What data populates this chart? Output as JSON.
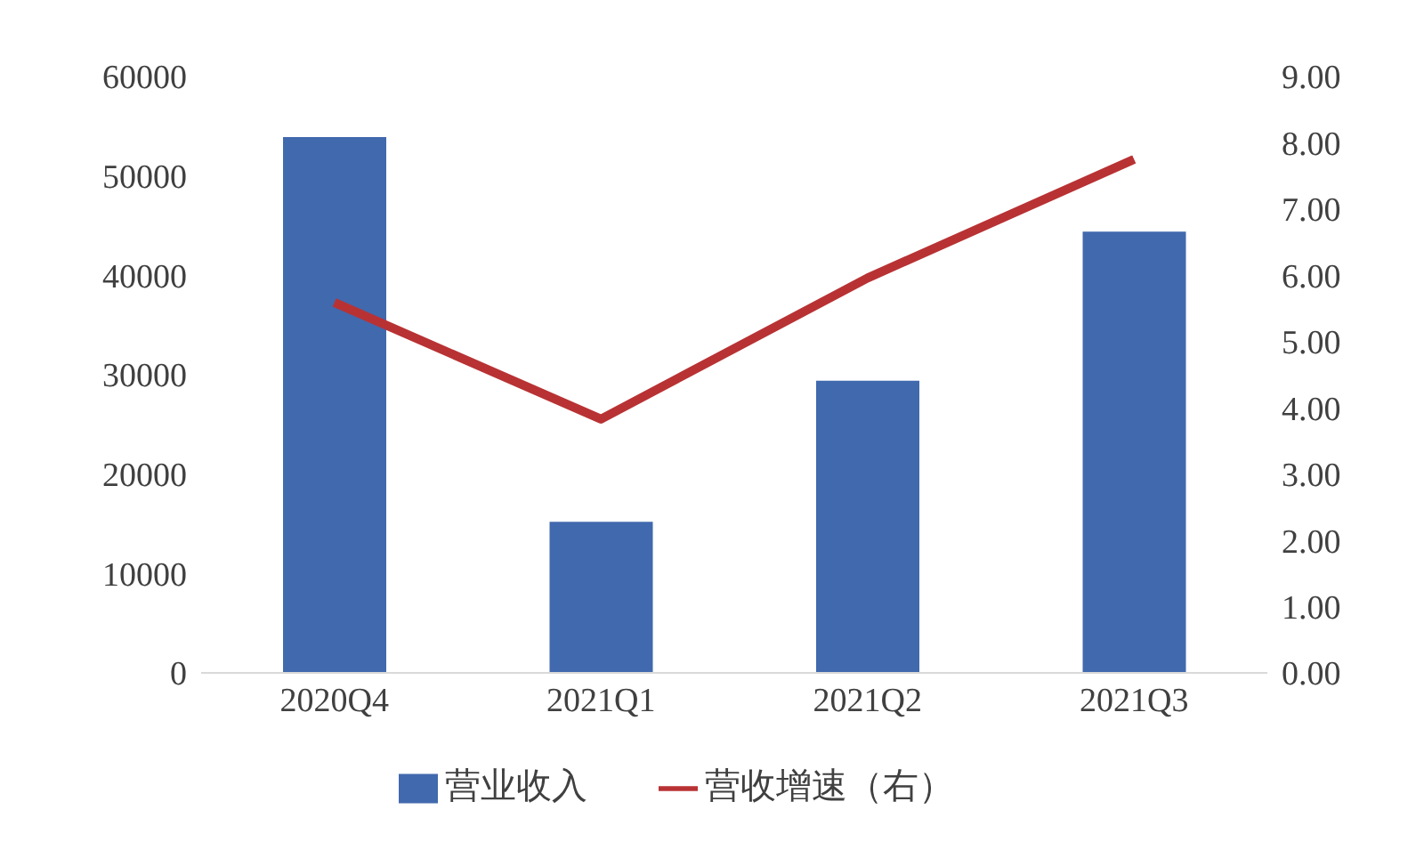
{
  "chart_data": {
    "type": "bar",
    "categories": [
      "2020Q4",
      "2021Q1",
      "2021Q2",
      "2021Q3"
    ],
    "series": [
      {
        "name": "营业收入",
        "color": "#4169ae",
        "values": [
          53900,
          15200,
          29400,
          44400
        ]
      },
      {
        "name": "营收增速（右）",
        "type": "line",
        "axis": "y2",
        "color": "#b83234",
        "values": [
          5.59,
          3.83,
          5.96,
          7.75
        ]
      }
    ],
    "ylim": [
      0,
      60000
    ],
    "yticks": [
      0,
      10000,
      20000,
      30000,
      40000,
      50000,
      60000
    ],
    "y2lim": [
      0,
      9
    ],
    "y2ticks": [
      {
        "value": 0,
        "label": "0.00"
      },
      {
        "value": 1,
        "label": "1.00"
      },
      {
        "value": 2,
        "label": "2.00"
      },
      {
        "value": 3,
        "label": "3.00"
      },
      {
        "value": 4,
        "label": "4.00"
      },
      {
        "value": 5,
        "label": "5.00"
      },
      {
        "value": 6,
        "label": "6.00"
      },
      {
        "value": 7,
        "label": "7.00"
      },
      {
        "value": 8,
        "label": "8.00"
      },
      {
        "value": 9,
        "label": "9.00"
      }
    ],
    "grid": false,
    "legend": "bottom",
    "marker": "none"
  }
}
